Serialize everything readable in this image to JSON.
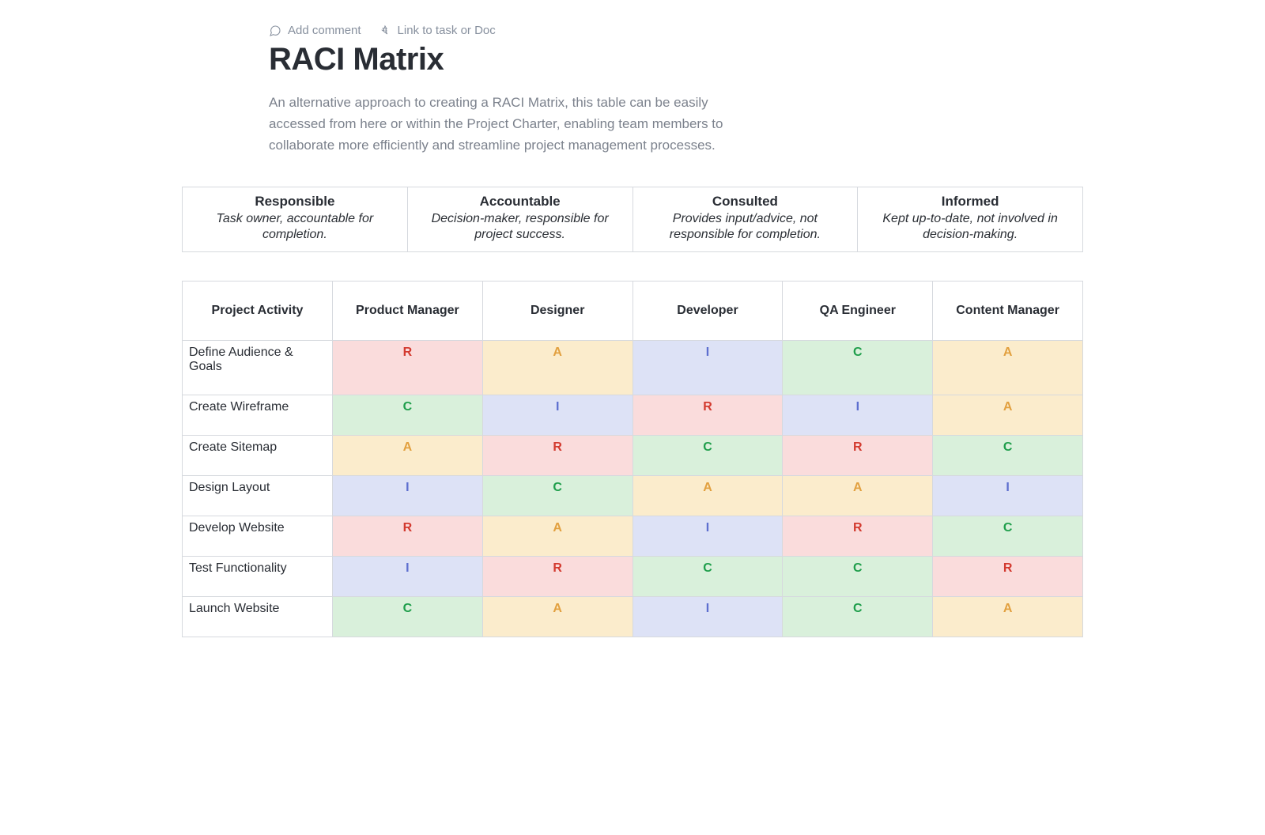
{
  "toolbar": {
    "add_comment": "Add comment",
    "link_task": "Link to task or Doc"
  },
  "title": "RACI Matrix",
  "intro": "An alternative approach to creating a RACI Matrix, this table can be easily accessed from here or within the Project Charter, enabling team members to collaborate more efficiently and streamline project management processes.",
  "legend": [
    {
      "title": "Responsible",
      "desc": "Task owner, accountable for completion."
    },
    {
      "title": "Accountable",
      "desc": "Decision-maker, responsible for project success."
    },
    {
      "title": "Consulted",
      "desc": "Provides input/advice, not responsible for completion."
    },
    {
      "title": "Informed",
      "desc": "Kept up-to-date, not involved in decision-making."
    }
  ],
  "styles": {
    "R": {
      "bg": "#fadcdc",
      "fg": "#d33a2f"
    },
    "A": {
      "bg": "#fbeccc",
      "fg": "#e2a03f"
    },
    "C": {
      "bg": "#d9f0db",
      "fg": "#1f9e4b"
    },
    "I": {
      "bg": "#dde2f6",
      "fg": "#5d6fcf"
    }
  },
  "matrix": {
    "activity_header": "Project Activity",
    "roles": [
      "Product Manager",
      "Designer",
      "Developer",
      "QA Engineer",
      "Content Manager"
    ],
    "rows": [
      {
        "activity": "Define Audience & Goals",
        "cells": [
          "R",
          "A",
          "I",
          "C",
          "A"
        ]
      },
      {
        "activity": "Create Wireframe",
        "cells": [
          "C",
          "I",
          "R",
          "I",
          "A"
        ]
      },
      {
        "activity": "Create Sitemap",
        "cells": [
          "A",
          "R",
          "C",
          "R",
          "C"
        ]
      },
      {
        "activity": "Design Layout",
        "cells": [
          "I",
          "C",
          "A",
          "A",
          "I"
        ]
      },
      {
        "activity": "Develop Website",
        "cells": [
          "R",
          "A",
          "I",
          "R",
          "C"
        ]
      },
      {
        "activity": "Test Functionality",
        "cells": [
          "I",
          "R",
          "C",
          "C",
          "R"
        ]
      },
      {
        "activity": "Launch Website",
        "cells": [
          "C",
          "A",
          "I",
          "C",
          "A"
        ]
      }
    ]
  }
}
